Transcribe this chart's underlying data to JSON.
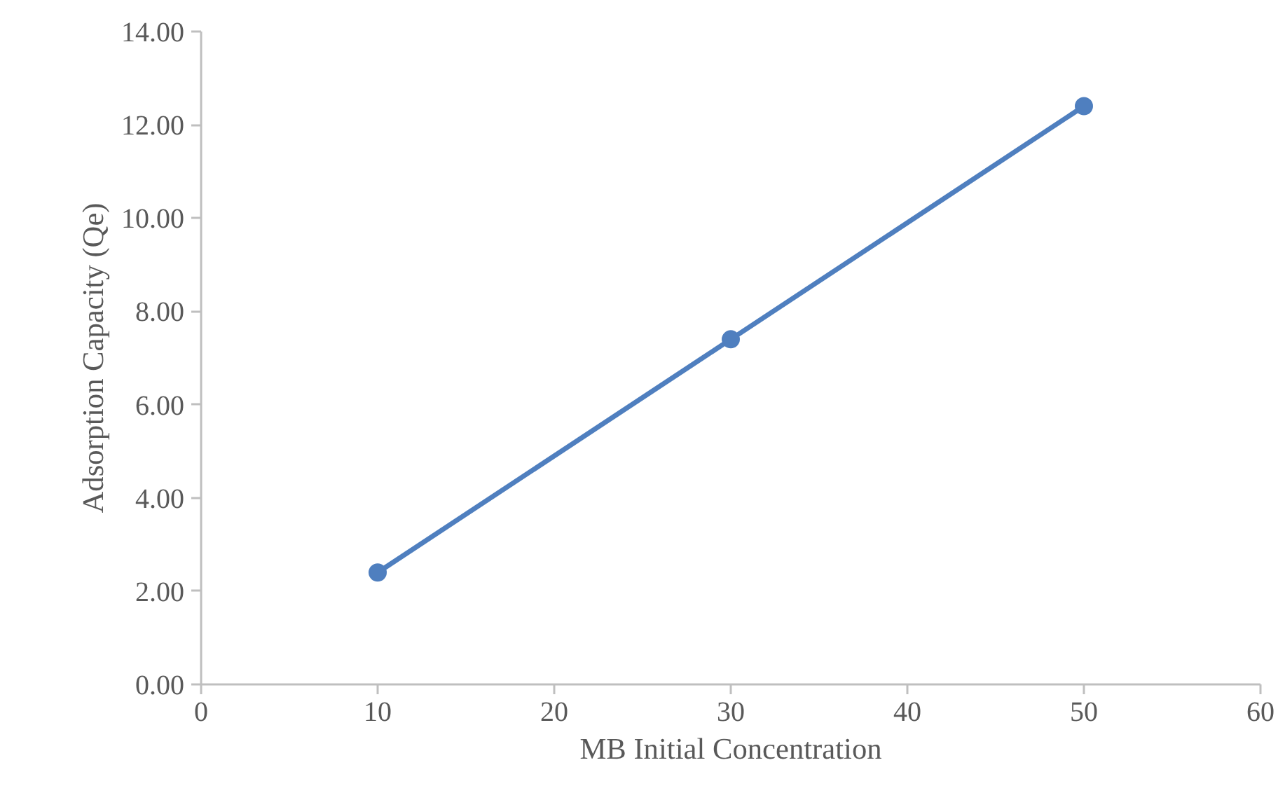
{
  "chart_data": {
    "type": "line",
    "xlabel": "MB Initial Concentration",
    "ylabel": "Adsorption Capacity (Qe)",
    "x": [
      10,
      30,
      50
    ],
    "series": [
      {
        "color": "#4f7fbf",
        "values": [
          2.4,
          7.4,
          12.4
        ]
      }
    ],
    "xlim": [
      0,
      60
    ],
    "xticks": [
      0,
      10,
      20,
      30,
      40,
      50,
      60
    ],
    "ylim": [
      0,
      14
    ],
    "yticks": [
      {
        "value": 0,
        "label": "0.00"
      },
      {
        "value": 2,
        "label": "2.00"
      },
      {
        "value": 4,
        "label": "4.00"
      },
      {
        "value": 6,
        "label": "6.00"
      },
      {
        "value": 8,
        "label": "8.00"
      },
      {
        "value": 10,
        "label": "10.00"
      },
      {
        "value": 12,
        "label": "12.00"
      },
      {
        "value": 14,
        "label": "14.00"
      }
    ],
    "marker": "circle",
    "line_style": "solid"
  }
}
